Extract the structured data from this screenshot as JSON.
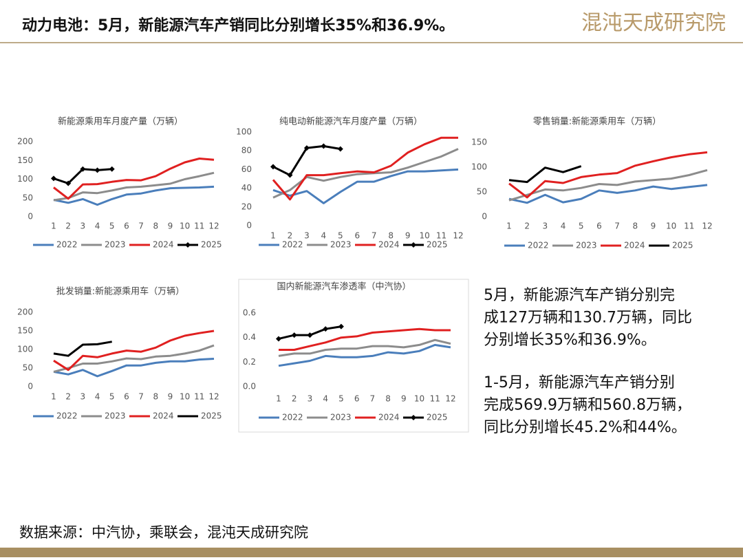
{
  "header": {
    "title": "动力电池：5月，新能源汽车产销同比分别增长35%和36.9%。",
    "logo": "混沌天成研究院"
  },
  "textbox": {
    "paragraphs": [
      [
        "5月，新能源汽车产销分别完",
        "成127万辆和130.7万辆，同比",
        "分别增长35%和36.9%。"
      ],
      [
        "1-5月，新能源汽车产销分别",
        "完成569.9万辆和560.8万辆，",
        "同比分别增长45.2%和44%。"
      ]
    ]
  },
  "source": "数据来源：中汽协，乘联会，混沌天成研究院",
  "chart_data": [
    {
      "type": "line",
      "title": "新能源乘用车月度产量（万辆）",
      "categories": [
        "1",
        "2",
        "3",
        "4",
        "5",
        "6",
        "7",
        "8",
        "9",
        "10",
        "11",
        "12"
      ],
      "ylim": [
        0,
        200
      ],
      "yticks": [
        0,
        50,
        100,
        150,
        200
      ],
      "series": [
        {
          "name": "2022",
          "color": "#4a7ebb",
          "values": [
            45,
            37,
            47,
            32,
            47,
            59,
            62,
            70,
            76,
            77,
            78,
            80
          ]
        },
        {
          "name": "2023",
          "color": "#8c8c8c",
          "values": [
            44,
            50,
            65,
            63,
            70,
            78,
            80,
            84,
            88,
            100,
            108,
            117
          ]
        },
        {
          "name": "2024",
          "color": "#e02020",
          "values": [
            78,
            48,
            86,
            87,
            93,
            98,
            97,
            108,
            128,
            145,
            155,
            152
          ]
        },
        {
          "name": "2025",
          "color": "#000000",
          "marker": true,
          "values": [
            102,
            89,
            127,
            124,
            127,
            null,
            null,
            null,
            null,
            null,
            null,
            null
          ]
        }
      ]
    },
    {
      "type": "line",
      "title": "纯电动新能源汽车月度产量（万辆）",
      "categories": [
        "1",
        "2",
        "3",
        "4",
        "5",
        "6",
        "7",
        "8",
        "9",
        "10",
        "11",
        "12"
      ],
      "ylim": [
        0,
        100
      ],
      "yticks": [
        0,
        20,
        40,
        60,
        80,
        100
      ],
      "series": [
        {
          "name": "2022",
          "color": "#4a7ebb",
          "values": [
            38,
            32,
            37,
            24,
            36,
            47,
            47,
            53,
            58,
            58,
            59,
            60
          ]
        },
        {
          "name": "2023",
          "color": "#8c8c8c",
          "values": [
            30,
            38,
            52,
            48,
            52,
            55,
            56,
            57,
            62,
            68,
            74,
            82
          ]
        },
        {
          "name": "2024",
          "color": "#e02020",
          "values": [
            49,
            28,
            54,
            54,
            56,
            58,
            57,
            64,
            78,
            87,
            94,
            94
          ]
        },
        {
          "name": "2025",
          "color": "#000000",
          "marker": true,
          "values": [
            63,
            54,
            83,
            85,
            82,
            null,
            null,
            null,
            null,
            null,
            null,
            null
          ]
        }
      ]
    },
    {
      "type": "line",
      "title": "零售销量:新能源乘用车（万辆）",
      "categories": [
        "1",
        "2",
        "3",
        "4",
        "5",
        "6",
        "7",
        "8",
        "9",
        "10",
        "11",
        "12"
      ],
      "ylim": [
        0,
        150
      ],
      "yticks": [
        0,
        50,
        100,
        150
      ],
      "series": [
        {
          "name": "2022",
          "color": "#4a7ebb",
          "values": [
            36,
            28,
            44,
            29,
            36,
            53,
            48,
            53,
            61,
            56,
            60,
            64
          ]
        },
        {
          "name": "2023",
          "color": "#8c8c8c",
          "values": [
            33,
            44,
            55,
            53,
            58,
            66,
            64,
            71,
            74,
            77,
            84,
            94
          ]
        },
        {
          "name": "2024",
          "color": "#e02020",
          "values": [
            67,
            39,
            72,
            68,
            80,
            85,
            88,
            103,
            112,
            120,
            126,
            130
          ]
        },
        {
          "name": "2025",
          "color": "#000000",
          "values": [
            74,
            70,
            99,
            90,
            102,
            null,
            null,
            null,
            null,
            null,
            null,
            null
          ]
        }
      ]
    },
    {
      "type": "line",
      "title": "批发销量:新能源乘用车（万辆）",
      "categories": [
        "1",
        "2",
        "3",
        "4",
        "5",
        "6",
        "7",
        "8",
        "9",
        "10",
        "11",
        "12"
      ],
      "ylim": [
        0,
        200
      ],
      "yticks": [
        0,
        50,
        100,
        150,
        200
      ],
      "series": [
        {
          "name": "2022",
          "color": "#4a7ebb",
          "values": [
            40,
            33,
            45,
            28,
            42,
            57,
            57,
            64,
            68,
            68,
            73,
            75
          ]
        },
        {
          "name": "2023",
          "color": "#8c8c8c",
          "values": [
            40,
            50,
            62,
            62,
            68,
            76,
            74,
            81,
            83,
            89,
            97,
            111
          ]
        },
        {
          "name": "2024",
          "color": "#e02020",
          "values": [
            70,
            45,
            83,
            79,
            89,
            97,
            94,
            105,
            124,
            137,
            144,
            150
          ]
        },
        {
          "name": "2025",
          "color": "#000000",
          "values": [
            89,
            83,
            113,
            114,
            121,
            null,
            null,
            null,
            null,
            null,
            null,
            null
          ]
        }
      ]
    },
    {
      "type": "line",
      "title": "国内新能源汽车渗透率（中汽协）",
      "categories": [
        "1",
        "2",
        "3",
        "4",
        "5",
        "6",
        "7",
        "8",
        "9",
        "10",
        "11",
        "12"
      ],
      "ylim": [
        0,
        0.6
      ],
      "yticks": [
        {
          "value": 0,
          "label": "0.0"
        },
        0.2,
        0.4,
        0.6
      ],
      "series": [
        {
          "name": "2022",
          "color": "#4a7ebb",
          "values": [
            0.17,
            0.19,
            0.21,
            0.25,
            0.24,
            0.24,
            0.25,
            0.28,
            0.27,
            0.29,
            0.34,
            0.32
          ]
        },
        {
          "name": "2023",
          "color": "#8c8c8c",
          "values": [
            0.25,
            0.27,
            0.27,
            0.3,
            0.31,
            0.31,
            0.33,
            0.33,
            0.32,
            0.34,
            0.38,
            0.35
          ]
        },
        {
          "name": "2024",
          "color": "#e02020",
          "values": [
            0.3,
            0.3,
            0.33,
            0.36,
            0.4,
            0.41,
            0.44,
            0.45,
            0.46,
            0.47,
            0.46,
            0.46
          ]
        },
        {
          "name": "2025",
          "color": "#000000",
          "marker": true,
          "values": [
            0.39,
            0.42,
            0.42,
            0.47,
            0.49,
            null,
            null,
            null,
            null,
            null,
            null,
            null
          ]
        }
      ]
    }
  ]
}
